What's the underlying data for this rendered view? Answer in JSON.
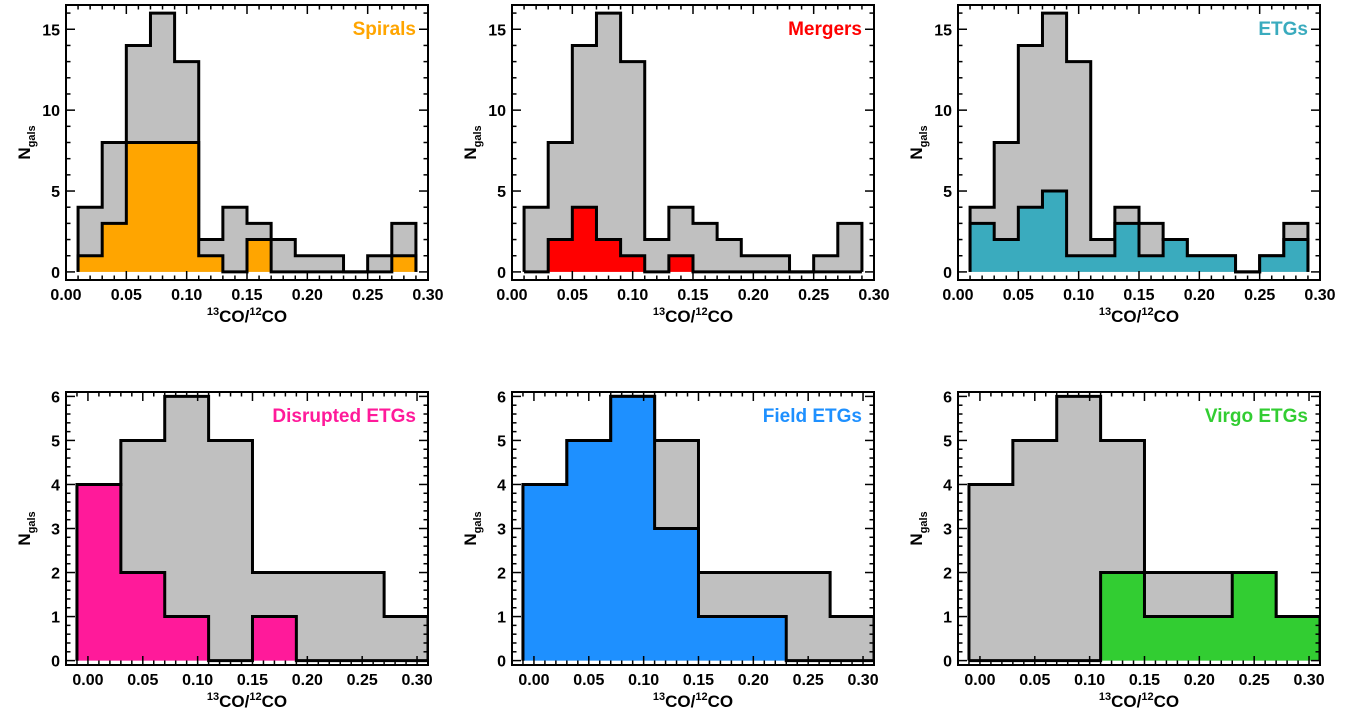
{
  "figure": {
    "xlabel": {
      "sup1": "13",
      "base1": "CO/",
      "sup2": "12",
      "base2": "CO"
    },
    "ylabel": {
      "base": "N",
      "sub": "gals"
    },
    "colors": {
      "background_hist": "#c0c0c0",
      "outline": "#000000"
    }
  },
  "chart_data": [
    {
      "type": "bar",
      "panel_label": "Spirals",
      "label_color": "#ffa500",
      "xlim": [
        0.0,
        0.3
      ],
      "ylim": [
        -0.5,
        16.5
      ],
      "xticks": [
        "0.00",
        "0.05",
        "0.10",
        "0.15",
        "0.20",
        "0.25",
        "0.30"
      ],
      "yticks": [
        "0",
        "5",
        "10",
        "15"
      ],
      "bin_edges": [
        0.01,
        0.03,
        0.05,
        0.07,
        0.09,
        0.11,
        0.13,
        0.15,
        0.17,
        0.19,
        0.21,
        0.23,
        0.25,
        0.27,
        0.29
      ],
      "series": [
        {
          "name": "",
          "color": "#c0c0c0",
          "values": [
            4,
            8,
            14,
            16,
            13,
            2,
            4,
            3,
            2,
            1,
            1,
            0,
            1,
            3
          ]
        },
        {
          "name": "Spirals",
          "color": "#ffa500",
          "values": [
            1,
            3,
            8,
            8,
            8,
            1,
            0,
            2,
            0,
            0,
            0,
            0,
            0,
            1
          ]
        }
      ]
    },
    {
      "type": "bar",
      "panel_label": "Mergers",
      "label_color": "#ff0000",
      "xlim": [
        0.0,
        0.3
      ],
      "ylim": [
        -0.5,
        16.5
      ],
      "xticks": [
        "0.00",
        "0.05",
        "0.10",
        "0.15",
        "0.20",
        "0.25",
        "0.30"
      ],
      "yticks": [
        "0",
        "5",
        "10",
        "15"
      ],
      "bin_edges": [
        0.01,
        0.03,
        0.05,
        0.07,
        0.09,
        0.11,
        0.13,
        0.15,
        0.17,
        0.19,
        0.21,
        0.23,
        0.25,
        0.27,
        0.29
      ],
      "series": [
        {
          "name": "",
          "color": "#c0c0c0",
          "values": [
            4,
            8,
            14,
            16,
            13,
            2,
            4,
            3,
            2,
            1,
            1,
            0,
            1,
            3
          ]
        },
        {
          "name": "Mergers",
          "color": "#ff0000",
          "values": [
            0,
            2,
            4,
            2,
            1,
            0,
            1,
            0,
            0,
            0,
            0,
            0,
            0,
            0
          ]
        }
      ]
    },
    {
      "type": "bar",
      "panel_label": "ETGs",
      "label_color": "#3aabbe",
      "xlim": [
        0.0,
        0.3
      ],
      "ylim": [
        -0.5,
        16.5
      ],
      "xticks": [
        "0.00",
        "0.05",
        "0.10",
        "0.15",
        "0.20",
        "0.25",
        "0.30"
      ],
      "yticks": [
        "0",
        "5",
        "10",
        "15"
      ],
      "bin_edges": [
        0.01,
        0.03,
        0.05,
        0.07,
        0.09,
        0.11,
        0.13,
        0.15,
        0.17,
        0.19,
        0.21,
        0.23,
        0.25,
        0.27,
        0.29
      ],
      "series": [
        {
          "name": "",
          "color": "#c0c0c0",
          "values": [
            4,
            8,
            14,
            16,
            13,
            2,
            4,
            3,
            2,
            1,
            1,
            0,
            1,
            3
          ]
        },
        {
          "name": "ETGs",
          "color": "#3aabbe",
          "values": [
            3,
            2,
            4,
            5,
            1,
            1,
            3,
            1,
            2,
            1,
            1,
            0,
            1,
            2
          ]
        }
      ]
    },
    {
      "type": "bar",
      "panel_label": "Disrupted ETGs",
      "label_color": "#ff1a9a",
      "xlim": [
        -0.02,
        0.31
      ],
      "ylim": [
        -0.1,
        6.1
      ],
      "xticks": [
        "0.00",
        "0.05",
        "0.10",
        "0.15",
        "0.20",
        "0.25",
        "0.30"
      ],
      "yticks": [
        "0",
        "1",
        "2",
        "3",
        "4",
        "5",
        "6"
      ],
      "bin_edges": [
        -0.01,
        0.03,
        0.07,
        0.11,
        0.15,
        0.19,
        0.23,
        0.27,
        0.31
      ],
      "series": [
        {
          "name": "",
          "color": "#c0c0c0",
          "values": [
            4,
            5,
            6,
            5,
            2,
            2,
            2,
            1
          ]
        },
        {
          "name": "Disrupted ETGs",
          "color": "#ff1a9a",
          "values": [
            4,
            2,
            1,
            0,
            1,
            0,
            0,
            0
          ]
        }
      ]
    },
    {
      "type": "bar",
      "panel_label": "Field ETGs",
      "label_color": "#1e90ff",
      "xlim": [
        -0.02,
        0.31
      ],
      "ylim": [
        -0.1,
        6.1
      ],
      "xticks": [
        "0.00",
        "0.05",
        "0.10",
        "0.15",
        "0.20",
        "0.25",
        "0.30"
      ],
      "yticks": [
        "0",
        "1",
        "2",
        "3",
        "4",
        "5",
        "6"
      ],
      "bin_edges": [
        -0.01,
        0.03,
        0.07,
        0.11,
        0.15,
        0.19,
        0.23,
        0.27,
        0.31
      ],
      "series": [
        {
          "name": "",
          "color": "#c0c0c0",
          "values": [
            4,
            5,
            6,
            5,
            2,
            2,
            2,
            1
          ]
        },
        {
          "name": "Field ETGs",
          "color": "#1e90ff",
          "values": [
            4,
            5,
            6,
            3,
            1,
            1,
            0,
            0
          ]
        }
      ]
    },
    {
      "type": "bar",
      "panel_label": "Virgo ETGs",
      "label_color": "#32cd32",
      "xlim": [
        -0.02,
        0.31
      ],
      "ylim": [
        -0.1,
        6.1
      ],
      "xticks": [
        "0.00",
        "0.05",
        "0.10",
        "0.15",
        "0.20",
        "0.25",
        "0.30"
      ],
      "yticks": [
        "0",
        "1",
        "2",
        "3",
        "4",
        "5",
        "6"
      ],
      "bin_edges": [
        -0.01,
        0.03,
        0.07,
        0.11,
        0.15,
        0.19,
        0.23,
        0.27,
        0.31
      ],
      "series": [
        {
          "name": "",
          "color": "#c0c0c0",
          "values": [
            4,
            5,
            6,
            5,
            2,
            2,
            2,
            1
          ]
        },
        {
          "name": "Virgo ETGs",
          "color": "#32cd32",
          "values": [
            0,
            0,
            0,
            2,
            1,
            1,
            2,
            1
          ]
        }
      ]
    }
  ]
}
